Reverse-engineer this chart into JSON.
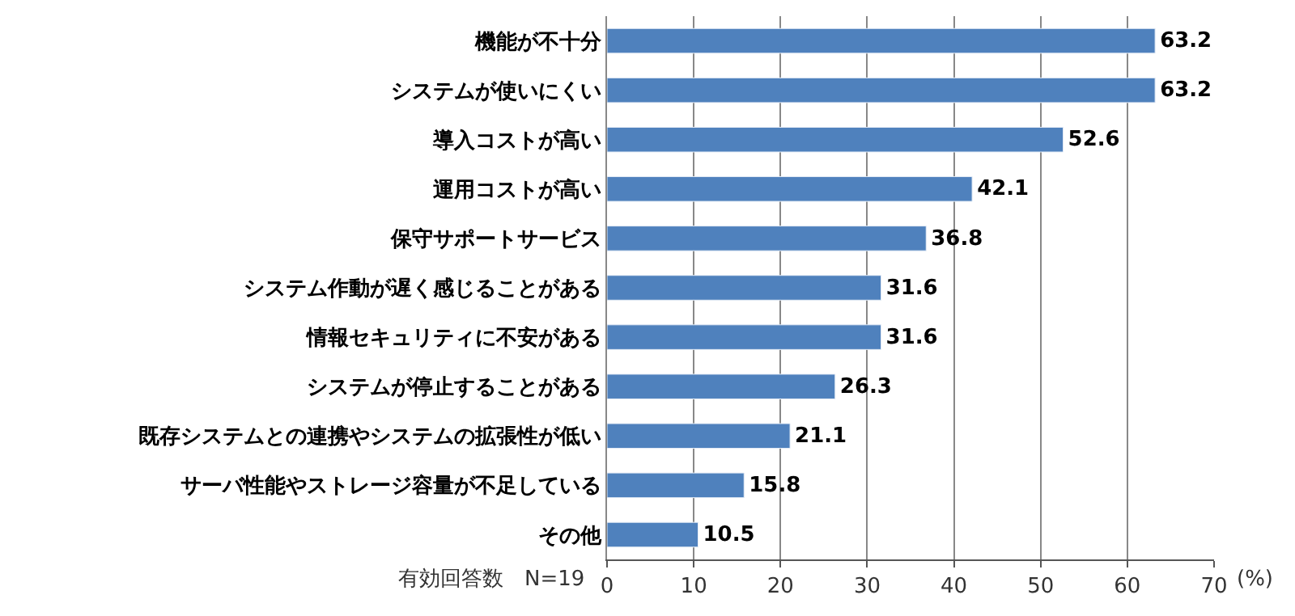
{
  "chart_data": {
    "type": "bar",
    "orientation": "horizontal",
    "xlabel": "(%)",
    "annotations": [
      "有効回答数　N=19"
    ],
    "categories": [
      "機能が不十分",
      "システムが使いにくい",
      "導入コストが高い",
      "運用コストが高い",
      "保守サポートサービス",
      "システム作動が遅く感じることがある",
      "情報セキュリティに不安がある",
      "システムが停止することがある",
      "既存システムとの連携やシステムの拡張性が低い",
      "サーバ性能やストレージ容量が不足している",
      "その他"
    ],
    "values": [
      63.2,
      63.2,
      52.6,
      42.1,
      36.8,
      31.6,
      31.6,
      26.3,
      21.1,
      15.8,
      10.5
    ],
    "color": "#4f81bd",
    "xlim": [
      0,
      70
    ],
    "xticks": [
      0,
      10,
      20,
      30,
      40,
      50,
      60,
      70
    ],
    "grid": "x",
    "data_labels": true
  }
}
